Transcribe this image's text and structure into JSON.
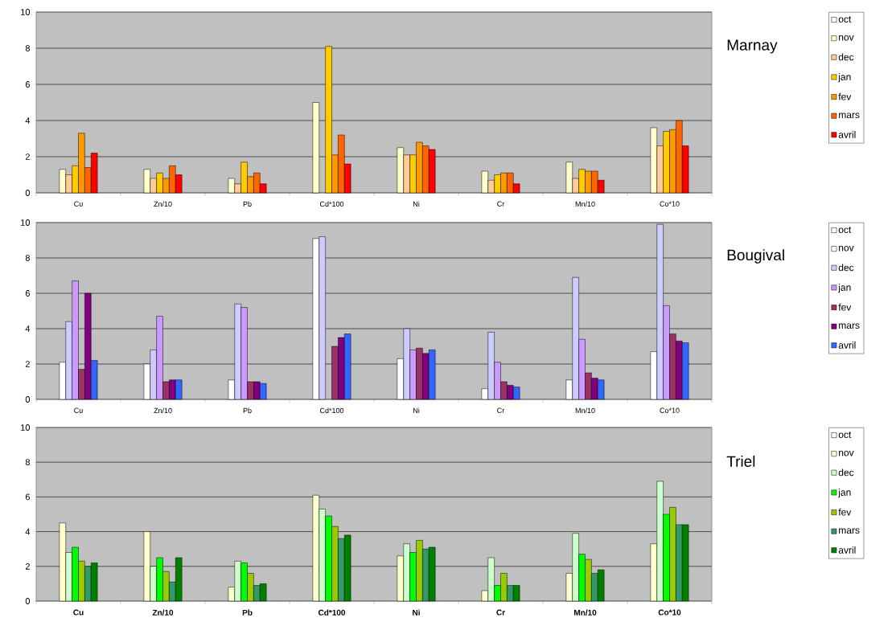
{
  "chart_data": [
    {
      "type": "bar",
      "annotations": [
        "Marnay"
      ],
      "categories": [
        "Cu",
        "Zn/10",
        "Pb",
        "Cd*100",
        "Ni",
        "Cr",
        "Mn/10",
        "Co*10"
      ],
      "ylim": [
        0,
        10
      ],
      "yticks": [
        0,
        2,
        4,
        6,
        8,
        10
      ],
      "grid": "y",
      "legend": "right",
      "series": [
        {
          "name": "oct",
          "color": "#ffffff",
          "values": [
            null,
            null,
            null,
            null,
            null,
            null,
            null,
            null
          ]
        },
        {
          "name": "nov",
          "color": "#ffffcc",
          "values": [
            1.3,
            1.3,
            0.8,
            5.0,
            2.5,
            1.2,
            1.7,
            3.6
          ]
        },
        {
          "name": "dec",
          "color": "#ffcc99",
          "values": [
            1.0,
            0.8,
            0.5,
            null,
            2.1,
            0.7,
            0.8,
            2.6
          ]
        },
        {
          "name": "jan",
          "color": "#ffcc00",
          "values": [
            1.5,
            1.1,
            1.7,
            8.1,
            2.1,
            1.0,
            1.3,
            3.4
          ]
        },
        {
          "name": "fev",
          "color": "#ff9900",
          "values": [
            3.3,
            0.8,
            0.9,
            2.1,
            2.8,
            1.1,
            1.2,
            3.5
          ]
        },
        {
          "name": "mars",
          "color": "#ff6600",
          "values": [
            1.4,
            1.5,
            1.1,
            3.2,
            2.6,
            1.1,
            1.2,
            4.0
          ]
        },
        {
          "name": "avril",
          "color": "#ff0000",
          "values": [
            2.2,
            1.0,
            0.5,
            1.6,
            2.4,
            0.5,
            0.7,
            2.6
          ]
        }
      ]
    },
    {
      "type": "bar",
      "annotations": [
        "Bougival"
      ],
      "categories": [
        "Cu",
        "Zn/10",
        "Pb",
        "Cd*100",
        "Ni",
        "Cr",
        "Mn/10",
        "Co*10"
      ],
      "ylim": [
        0,
        10
      ],
      "yticks": [
        0,
        2,
        4,
        6,
        8,
        10
      ],
      "grid": "y",
      "legend": "right",
      "series": [
        {
          "name": "oct",
          "color": "#ffffff",
          "values": [
            null,
            null,
            null,
            null,
            null,
            null,
            null,
            null
          ]
        },
        {
          "name": "nov",
          "color": "#ffffff",
          "values": [
            2.1,
            2.0,
            1.1,
            9.1,
            2.3,
            0.6,
            1.1,
            2.7
          ]
        },
        {
          "name": "dec",
          "color": "#ccccff",
          "values": [
            4.4,
            2.8,
            5.4,
            9.2,
            4.0,
            3.8,
            6.9,
            9.9
          ]
        },
        {
          "name": "jan",
          "color": "#cc99ff",
          "values": [
            6.7,
            4.7,
            5.2,
            null,
            2.8,
            2.1,
            3.4,
            5.3
          ]
        },
        {
          "name": "fev",
          "color": "#993366",
          "values": [
            1.7,
            1.0,
            1.0,
            3.0,
            2.9,
            1.0,
            1.5,
            3.7
          ]
        },
        {
          "name": "mars",
          "color": "#800080",
          "values": [
            6.0,
            1.1,
            1.0,
            3.5,
            2.6,
            0.8,
            1.2,
            3.3
          ]
        },
        {
          "name": "avril",
          "color": "#3366ff",
          "values": [
            2.2,
            1.1,
            0.9,
            3.7,
            2.8,
            0.7,
            1.1,
            3.2
          ]
        }
      ]
    },
    {
      "type": "bar",
      "annotations": [
        "Triel"
      ],
      "categories": [
        "Cu",
        "Zn/10",
        "Pb",
        "Cd*100",
        "Ni",
        "Cr",
        "Mn/10",
        "Co*10"
      ],
      "ylim": [
        0,
        10
      ],
      "yticks": [
        0,
        2,
        4,
        6,
        8,
        10
      ],
      "grid": "y",
      "legend": "right",
      "series": [
        {
          "name": "oct",
          "color": "#ffffff",
          "values": [
            null,
            null,
            null,
            null,
            null,
            null,
            null,
            null
          ]
        },
        {
          "name": "nov",
          "color": "#ffffcc",
          "values": [
            4.5,
            4.0,
            0.8,
            6.1,
            2.6,
            0.6,
            1.6,
            3.3
          ]
        },
        {
          "name": "dec",
          "color": "#ccffcc",
          "values": [
            2.8,
            2.0,
            2.3,
            5.3,
            3.3,
            2.5,
            3.9,
            6.9
          ]
        },
        {
          "name": "jan",
          "color": "#00ff00",
          "values": [
            3.1,
            2.5,
            2.2,
            4.9,
            2.8,
            0.9,
            2.7,
            5.0
          ]
        },
        {
          "name": "fev",
          "color": "#99cc00",
          "values": [
            2.3,
            1.7,
            1.6,
            4.3,
            3.5,
            1.6,
            2.4,
            5.4
          ]
        },
        {
          "name": "mars",
          "color": "#339966",
          "values": [
            2.0,
            1.1,
            0.9,
            3.6,
            3.0,
            0.9,
            1.6,
            4.4
          ]
        },
        {
          "name": "avril",
          "color": "#008000",
          "values": [
            2.2,
            2.5,
            1.0,
            3.8,
            3.1,
            0.9,
            1.8,
            4.4
          ]
        }
      ]
    }
  ]
}
